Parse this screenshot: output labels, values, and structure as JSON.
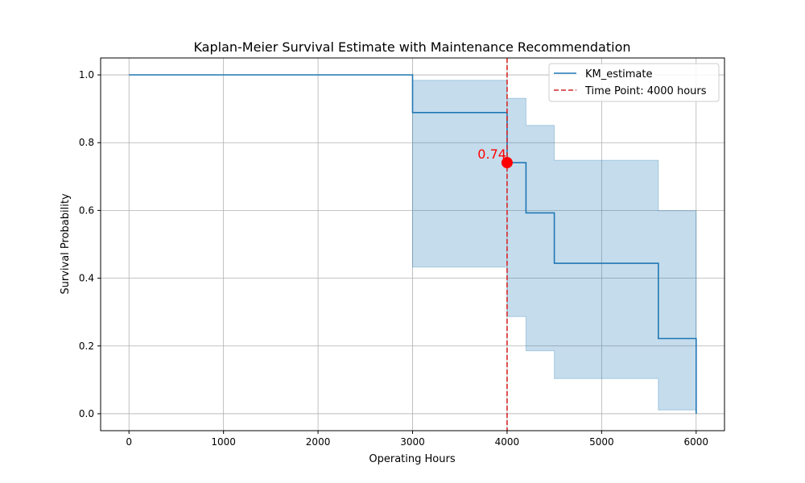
{
  "chart_data": {
    "type": "line",
    "title": "Kaplan-Meier Survival Estimate with Maintenance Recommendation",
    "xlabel": "Operating Hours",
    "ylabel": "Survival Probability",
    "xlim": [
      -300,
      6300
    ],
    "ylim": [
      -0.05,
      1.05
    ],
    "x_ticks": [
      0,
      1000,
      2000,
      3000,
      4000,
      5000,
      6000
    ],
    "x_tick_labels": [
      "0",
      "1000",
      "2000",
      "3000",
      "4000",
      "5000",
      "6000"
    ],
    "y_ticks": [
      0.0,
      0.2,
      0.4,
      0.6,
      0.8,
      1.0
    ],
    "y_tick_labels": [
      "0.0",
      "0.2",
      "0.4",
      "0.6",
      "0.8",
      "1.0"
    ],
    "grid": true,
    "legend_position": "top-right",
    "series": [
      {
        "name": "KM_estimate",
        "style": "step-post",
        "color": "#1f77b4",
        "x": [
          0,
          3000,
          4000,
          4200,
          4500,
          5600,
          6000
        ],
        "y": [
          1.0,
          0.889,
          0.741,
          0.593,
          0.444,
          0.222,
          0.0
        ]
      }
    ],
    "confidence_band": {
      "color": "#1f77b4",
      "x": [
        0,
        3000,
        4000,
        4200,
        4500,
        5600,
        6000
      ],
      "lower": [
        1.0,
        0.433,
        0.287,
        0.186,
        0.104,
        0.011,
        0.011
      ],
      "upper": [
        1.0,
        0.984,
        0.931,
        0.851,
        0.748,
        0.599,
        0.599
      ]
    },
    "vertical_line": {
      "name": "Time Point: 4000 hours",
      "x": 4000,
      "color": "#d62728",
      "style": "dashed"
    },
    "marker": {
      "x": 4000,
      "y": 0.741,
      "label": "0.74",
      "color": "#ff0000"
    }
  }
}
